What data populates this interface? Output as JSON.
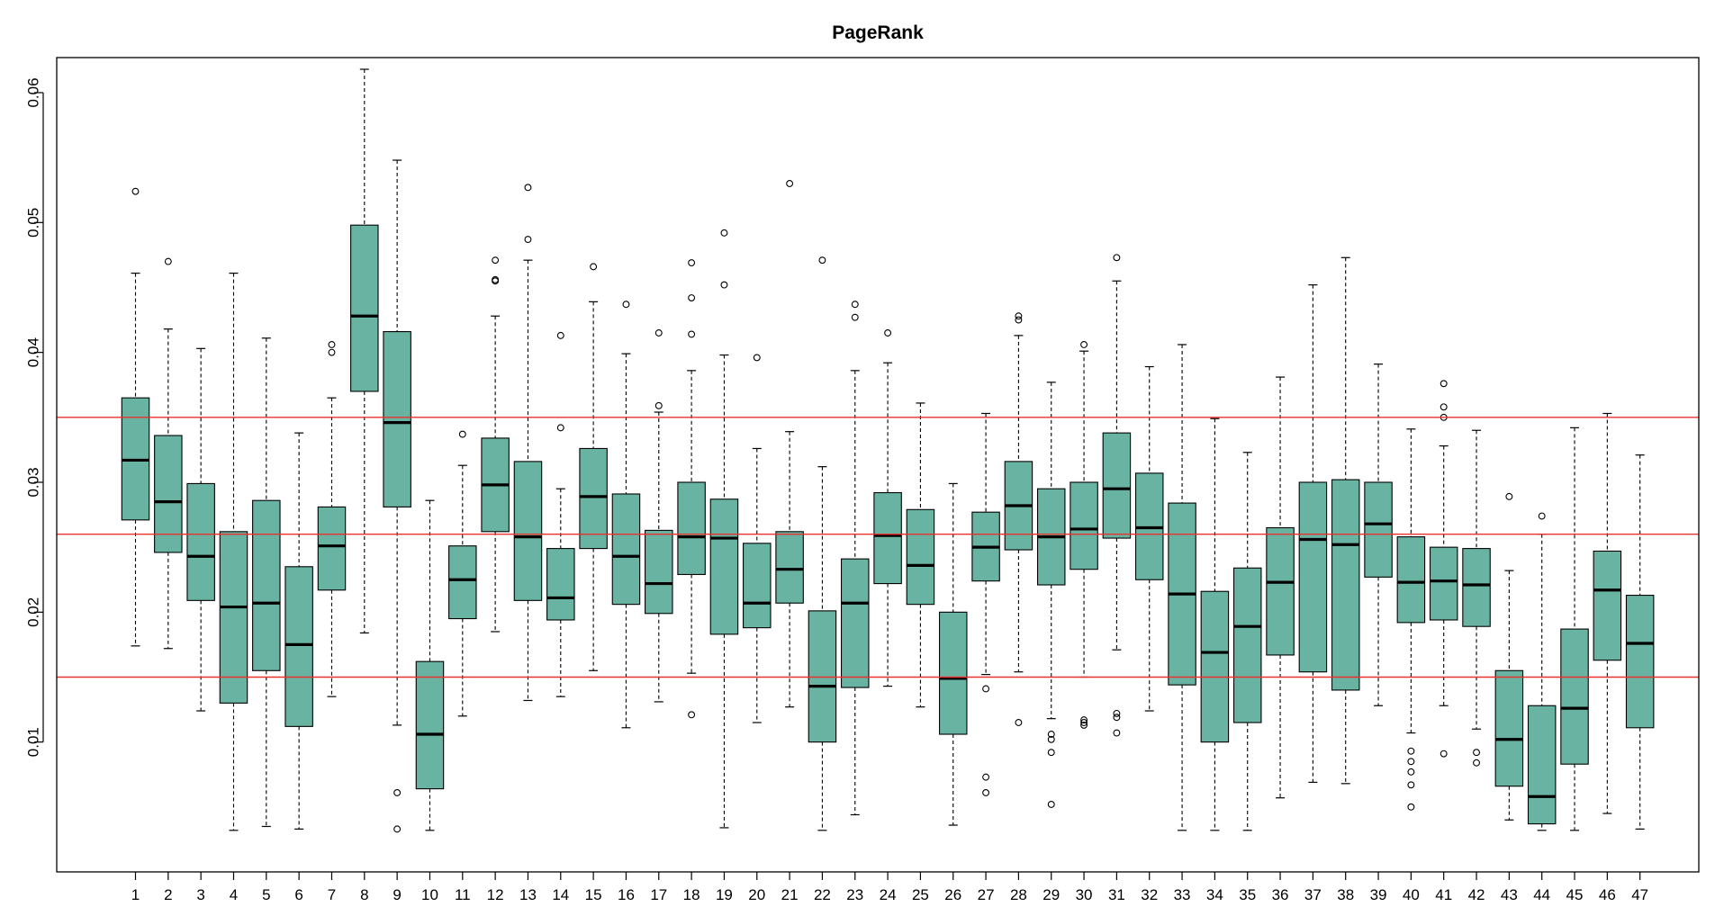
{
  "chart_data": {
    "type": "boxplot",
    "title": "PageRank",
    "xlabel": "",
    "ylabel": "",
    "box_color": "#69B3A2",
    "reference_line_color": "#E8322E",
    "ylim": [
      0.0,
      0.0627
    ],
    "y_ticks": [
      0.01,
      0.02,
      0.03,
      0.04,
      0.05,
      0.06
    ],
    "y_tick_labels": [
      "0.01",
      "0.02",
      "0.03",
      "0.04",
      "0.05",
      "0.06"
    ],
    "reference_lines": [
      0.035,
      0.026,
      0.015
    ],
    "categories": [
      "1",
      "2",
      "3",
      "4",
      "5",
      "6",
      "7",
      "8",
      "9",
      "10",
      "11",
      "12",
      "13",
      "14",
      "15",
      "16",
      "17",
      "18",
      "19",
      "20",
      "21",
      "22",
      "23",
      "24",
      "25",
      "26",
      "27",
      "28",
      "29",
      "30",
      "31",
      "32",
      "33",
      "34",
      "35",
      "36",
      "37",
      "38",
      "39",
      "40",
      "41",
      "42",
      "43",
      "44",
      "45",
      "46",
      "47"
    ],
    "boxes": [
      {
        "label": "1",
        "min": 0.0174,
        "q1": 0.0271,
        "median": 0.0317,
        "q3": 0.0365,
        "max": 0.0461,
        "outliers": [
          0.0524
        ]
      },
      {
        "label": "2",
        "min": 0.0172,
        "q1": 0.0246,
        "median": 0.0285,
        "q3": 0.0336,
        "max": 0.0418,
        "outliers": [
          0.047
        ]
      },
      {
        "label": "3",
        "min": 0.0124,
        "q1": 0.0209,
        "median": 0.0243,
        "q3": 0.0299,
        "max": 0.0403,
        "outliers": []
      },
      {
        "label": "4",
        "min": 0.0032,
        "q1": 0.013,
        "median": 0.0204,
        "q3": 0.0262,
        "max": 0.0461,
        "outliers": []
      },
      {
        "label": "5",
        "min": 0.0035,
        "q1": 0.0155,
        "median": 0.0207,
        "q3": 0.0286,
        "max": 0.0411,
        "outliers": []
      },
      {
        "label": "6",
        "min": 0.0033,
        "q1": 0.0112,
        "median": 0.0175,
        "q3": 0.0235,
        "max": 0.0338,
        "outliers": []
      },
      {
        "label": "7",
        "min": 0.0135,
        "q1": 0.0217,
        "median": 0.0251,
        "q3": 0.0281,
        "max": 0.0365,
        "outliers": [
          0.04,
          0.0406
        ]
      },
      {
        "label": "8",
        "min": 0.0184,
        "q1": 0.037,
        "median": 0.0428,
        "q3": 0.0498,
        "max": 0.0618,
        "outliers": []
      },
      {
        "label": "9",
        "min": 0.0113,
        "q1": 0.0281,
        "median": 0.0346,
        "q3": 0.0416,
        "max": 0.0548,
        "outliers": [
          0.0061,
          0.0033
        ]
      },
      {
        "label": "10",
        "min": 0.0032,
        "q1": 0.0064,
        "median": 0.0106,
        "q3": 0.0162,
        "max": 0.0286,
        "outliers": []
      },
      {
        "label": "11",
        "min": 0.012,
        "q1": 0.0195,
        "median": 0.0225,
        "q3": 0.0251,
        "max": 0.0313,
        "outliers": [
          0.0337
        ]
      },
      {
        "label": "12",
        "min": 0.0185,
        "q1": 0.0262,
        "median": 0.0298,
        "q3": 0.0334,
        "max": 0.0428,
        "outliers": [
          0.0455,
          0.0456,
          0.0471
        ]
      },
      {
        "label": "13",
        "min": 0.0132,
        "q1": 0.0209,
        "median": 0.0258,
        "q3": 0.0316,
        "max": 0.0471,
        "outliers": [
          0.0487,
          0.0527
        ]
      },
      {
        "label": "14",
        "min": 0.0135,
        "q1": 0.0194,
        "median": 0.0211,
        "q3": 0.0249,
        "max": 0.0295,
        "outliers": [
          0.0342,
          0.0413
        ]
      },
      {
        "label": "15",
        "min": 0.0155,
        "q1": 0.0249,
        "median": 0.0289,
        "q3": 0.0326,
        "max": 0.0439,
        "outliers": [
          0.0466
        ]
      },
      {
        "label": "16",
        "min": 0.0111,
        "q1": 0.0206,
        "median": 0.0243,
        "q3": 0.0291,
        "max": 0.0399,
        "outliers": [
          0.0437
        ]
      },
      {
        "label": "17",
        "min": 0.0131,
        "q1": 0.0199,
        "median": 0.0222,
        "q3": 0.0263,
        "max": 0.0354,
        "outliers": [
          0.0359,
          0.0415
        ]
      },
      {
        "label": "18",
        "min": 0.0153,
        "q1": 0.0229,
        "median": 0.0258,
        "q3": 0.03,
        "max": 0.0386,
        "outliers": [
          0.0121,
          0.0414,
          0.0442,
          0.0469
        ]
      },
      {
        "label": "19",
        "min": 0.0034,
        "q1": 0.0183,
        "median": 0.0257,
        "q3": 0.0287,
        "max": 0.0398,
        "outliers": [
          0.0452,
          0.0492
        ]
      },
      {
        "label": "20",
        "min": 0.0115,
        "q1": 0.0188,
        "median": 0.0207,
        "q3": 0.0253,
        "max": 0.0326,
        "outliers": [
          0.0396
        ]
      },
      {
        "label": "21",
        "min": 0.0127,
        "q1": 0.0207,
        "median": 0.0233,
        "q3": 0.0262,
        "max": 0.0339,
        "outliers": [
          0.053
        ]
      },
      {
        "label": "22",
        "min": 0.0032,
        "q1": 0.01,
        "median": 0.0143,
        "q3": 0.0201,
        "max": 0.0312,
        "outliers": [
          0.0471
        ]
      },
      {
        "label": "23",
        "min": 0.0044,
        "q1": 0.0142,
        "median": 0.0207,
        "q3": 0.0241,
        "max": 0.0386,
        "outliers": [
          0.0427,
          0.0437
        ]
      },
      {
        "label": "24",
        "min": 0.0143,
        "q1": 0.0222,
        "median": 0.0259,
        "q3": 0.0292,
        "max": 0.0392,
        "outliers": [
          0.0415
        ]
      },
      {
        "label": "25",
        "min": 0.0127,
        "q1": 0.0206,
        "median": 0.0236,
        "q3": 0.0279,
        "max": 0.0361,
        "outliers": []
      },
      {
        "label": "26",
        "min": 0.0036,
        "q1": 0.0106,
        "median": 0.0149,
        "q3": 0.02,
        "max": 0.0299,
        "outliers": []
      },
      {
        "label": "27",
        "min": 0.0152,
        "q1": 0.0224,
        "median": 0.025,
        "q3": 0.0277,
        "max": 0.0353,
        "outliers": [
          0.0141,
          0.0073,
          0.0061
        ]
      },
      {
        "label": "28",
        "min": 0.0154,
        "q1": 0.0248,
        "median": 0.0282,
        "q3": 0.0316,
        "max": 0.0413,
        "outliers": [
          0.0115,
          0.0425,
          0.0428
        ]
      },
      {
        "label": "29",
        "min": 0.0118,
        "q1": 0.0221,
        "median": 0.0258,
        "q3": 0.0295,
        "max": 0.0377,
        "outliers": [
          0.0106,
          0.0102,
          0.0092,
          0.0052
        ]
      },
      {
        "label": "30",
        "min": 0.015,
        "q1": 0.0233,
        "median": 0.0264,
        "q3": 0.03,
        "max": 0.0401,
        "outliers": [
          0.0406,
          0.0117,
          0.0115,
          0.0113
        ]
      },
      {
        "label": "31",
        "min": 0.0171,
        "q1": 0.0257,
        "median": 0.0295,
        "q3": 0.0338,
        "max": 0.0455,
        "outliers": [
          0.0473,
          0.0122,
          0.0119,
          0.0107
        ]
      },
      {
        "label": "32",
        "min": 0.0124,
        "q1": 0.0225,
        "median": 0.0265,
        "q3": 0.0307,
        "max": 0.0389,
        "outliers": []
      },
      {
        "label": "33",
        "min": 0.0032,
        "q1": 0.0144,
        "median": 0.0214,
        "q3": 0.0284,
        "max": 0.0406,
        "outliers": []
      },
      {
        "label": "34",
        "min": 0.0032,
        "q1": 0.01,
        "median": 0.0169,
        "q3": 0.0216,
        "max": 0.0349,
        "outliers": []
      },
      {
        "label": "35",
        "min": 0.0032,
        "q1": 0.0115,
        "median": 0.0189,
        "q3": 0.0234,
        "max": 0.0323,
        "outliers": []
      },
      {
        "label": "36",
        "min": 0.0057,
        "q1": 0.0167,
        "median": 0.0223,
        "q3": 0.0265,
        "max": 0.0381,
        "outliers": []
      },
      {
        "label": "37",
        "min": 0.0069,
        "q1": 0.0154,
        "median": 0.0256,
        "q3": 0.03,
        "max": 0.0452,
        "outliers": []
      },
      {
        "label": "38",
        "min": 0.0068,
        "q1": 0.014,
        "median": 0.0252,
        "q3": 0.0302,
        "max": 0.0473,
        "outliers": []
      },
      {
        "label": "39",
        "min": 0.0128,
        "q1": 0.0227,
        "median": 0.0268,
        "q3": 0.03,
        "max": 0.0391,
        "outliers": []
      },
      {
        "label": "40",
        "min": 0.0107,
        "q1": 0.0192,
        "median": 0.0223,
        "q3": 0.0258,
        "max": 0.0341,
        "outliers": [
          0.0093,
          0.0085,
          0.0077,
          0.0067,
          0.005
        ]
      },
      {
        "label": "41",
        "min": 0.0128,
        "q1": 0.0194,
        "median": 0.0224,
        "q3": 0.025,
        "max": 0.0328,
        "outliers": [
          0.0376,
          0.0358,
          0.035,
          0.0091
        ]
      },
      {
        "label": "42",
        "min": 0.011,
        "q1": 0.0189,
        "median": 0.0221,
        "q3": 0.0249,
        "max": 0.034,
        "outliers": [
          0.0092,
          0.0084
        ]
      },
      {
        "label": "43",
        "min": 0.004,
        "q1": 0.0066,
        "median": 0.0102,
        "q3": 0.0155,
        "max": 0.0232,
        "outliers": [
          0.0289
        ]
      },
      {
        "label": "44",
        "min": 0.0032,
        "q1": 0.0037,
        "median": 0.0058,
        "q3": 0.0128,
        "max": 0.026,
        "outliers": [
          0.0274
        ]
      },
      {
        "label": "45",
        "min": 0.0032,
        "q1": 0.0083,
        "median": 0.0126,
        "q3": 0.0187,
        "max": 0.0342,
        "outliers": []
      },
      {
        "label": "46",
        "min": 0.0045,
        "q1": 0.0163,
        "median": 0.0217,
        "q3": 0.0247,
        "max": 0.0353,
        "outliers": []
      },
      {
        "label": "47",
        "min": 0.0033,
        "q1": 0.0111,
        "median": 0.0176,
        "q3": 0.0213,
        "max": 0.0321,
        "outliers": []
      }
    ]
  }
}
